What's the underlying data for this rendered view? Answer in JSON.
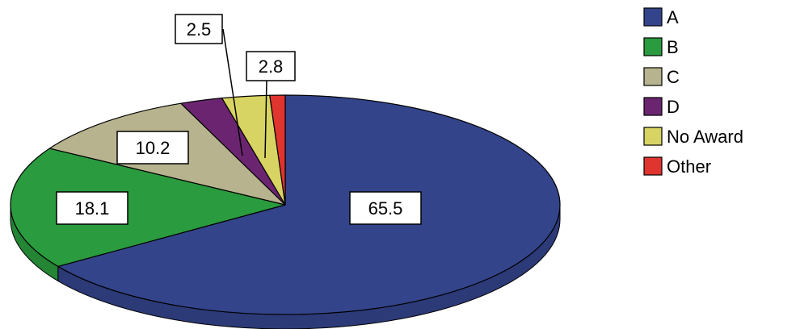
{
  "chart_data": {
    "type": "pie",
    "title": "",
    "three_d": true,
    "legend_position": "top-right",
    "series": [
      {
        "name": "",
        "categories": [
          "A",
          "B",
          "C",
          "D",
          "No Award",
          "Other"
        ],
        "values": [
          65.5,
          18.1,
          10.2,
          2.5,
          2.8,
          0.9
        ],
        "colors": [
          "#33448b",
          "#2a9b3e",
          "#b7b38e",
          "#6b2570",
          "#d8d463",
          "#e0342f"
        ],
        "data_labels": [
          "65.5",
          "18.1",
          "10.2",
          "2.5",
          "2.8",
          ""
        ]
      }
    ]
  }
}
